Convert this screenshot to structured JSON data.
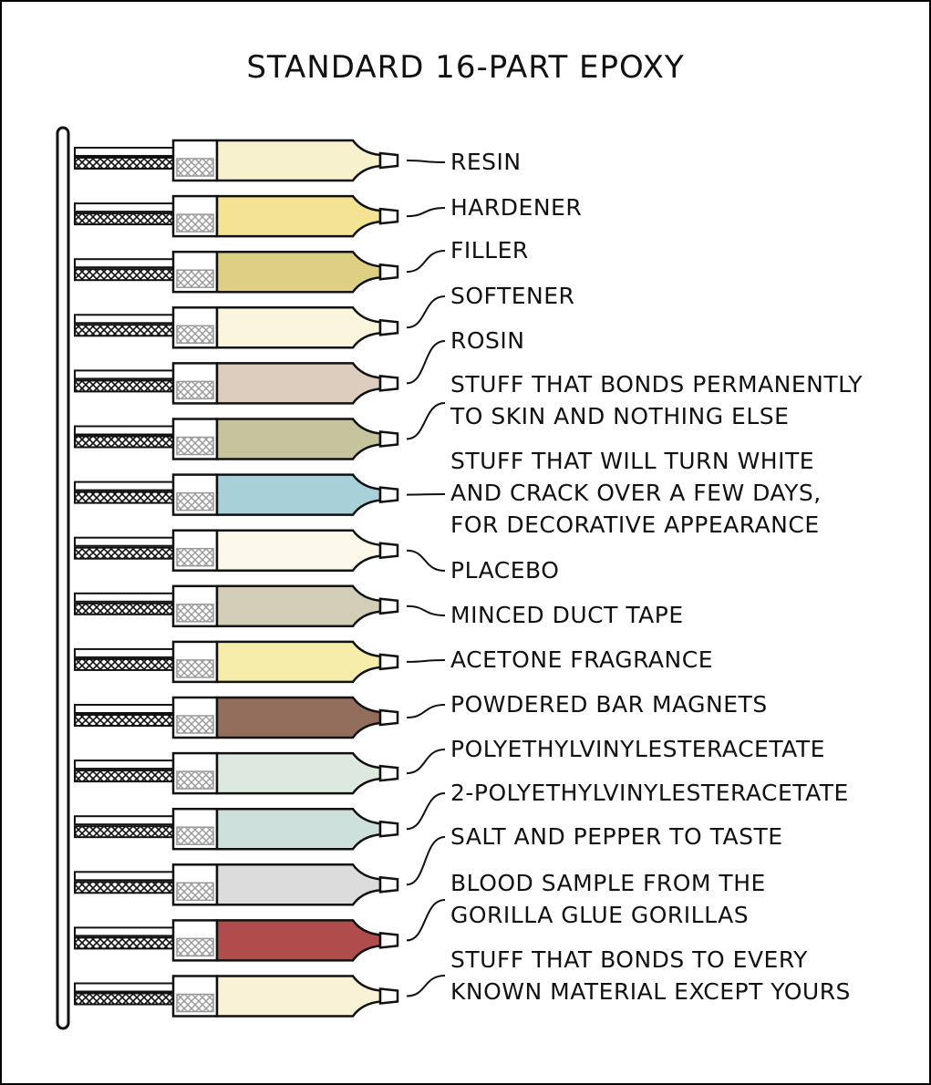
{
  "title": "STANDARD 16-PART EPOXY",
  "components": [
    {
      "label": [
        "RESIN"
      ],
      "color": "#f7f1cd"
    },
    {
      "label": [
        "HARDENER"
      ],
      "color": "#f3e393"
    },
    {
      "label": [
        "FILLER"
      ],
      "color": "#ddd084"
    },
    {
      "label": [
        "SOFTENER"
      ],
      "color": "#faf6dd"
    },
    {
      "label": [
        "ROSIN"
      ],
      "color": "#ddcdbf"
    },
    {
      "label": [
        "STUFF THAT BONDS PERMANENTLY",
        "TO SKIN AND NOTHING ELSE"
      ],
      "color": "#c6c49d"
    },
    {
      "label": [
        "STUFF THAT WILL TURN WHITE",
        "AND CRACK OVER A FEW DAYS,",
        "FOR DECORATIVE APPEARANCE"
      ],
      "color": "#a7d0d8"
    },
    {
      "label": [
        "PLACEBO"
      ],
      "color": "#fcf9eb"
    },
    {
      "label": [
        "MINCED DUCT TAPE"
      ],
      "color": "#d2cdb6"
    },
    {
      "label": [
        "ACETONE FRAGRANCE"
      ],
      "color": "#f5eca9"
    },
    {
      "label": [
        "POWDERED BAR MAGNETS"
      ],
      "color": "#946e5c"
    },
    {
      "label": [
        "POLYETHYLVINYLESTERACETATE"
      ],
      "color": "#dde8e0"
    },
    {
      "label": [
        "2-POLYETHYLVINYLESTERACETATE"
      ],
      "color": "#cde0dc"
    },
    {
      "label": [
        "SALT AND PEPPER TO TASTE"
      ],
      "color": "#dcdcdc"
    },
    {
      "label": [
        "BLOOD SAMPLE FROM THE",
        "GORILLA GLUE GORILLAS"
      ],
      "color": "#b04c4c"
    },
    {
      "label": [
        "STUFF THAT BONDS TO EVERY",
        "KNOWN MATERIAL EXCEPT YOURS"
      ],
      "color": "#f8f1d5"
    }
  ]
}
